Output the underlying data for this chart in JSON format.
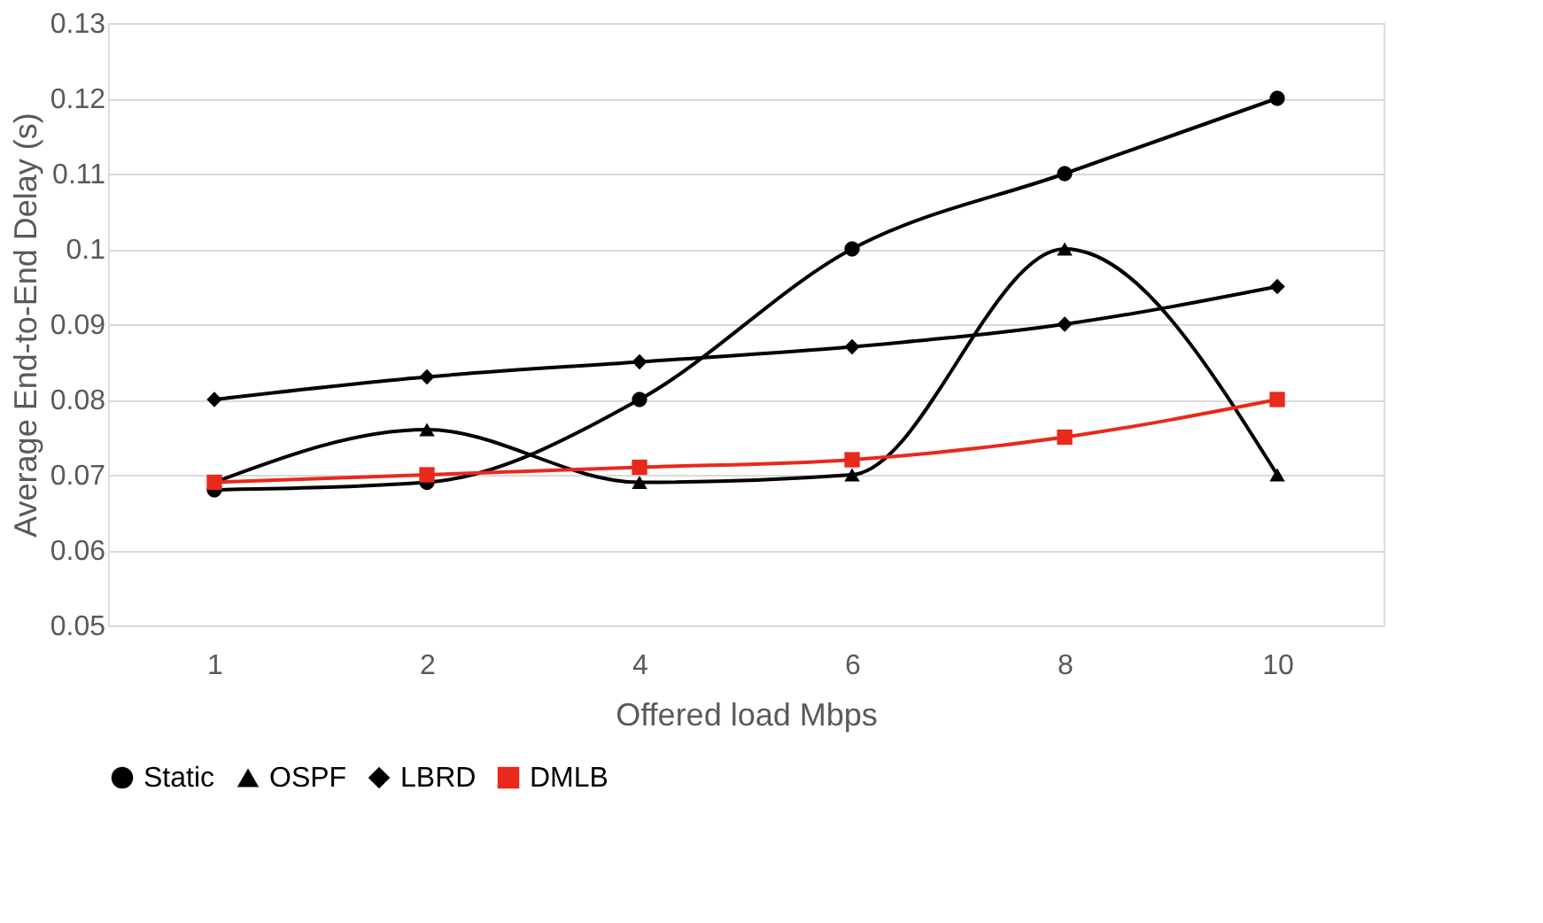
{
  "chart_data": {
    "type": "line",
    "xlabel": "Offered load Mbps",
    "ylabel": "Average End-to-End Delay (s)",
    "categories": [
      "1",
      "2",
      "4",
      "6",
      "8",
      "10"
    ],
    "series": [
      {
        "name": "Static",
        "color": "#000000",
        "marker": "circle",
        "values": [
          0.068,
          0.069,
          0.08,
          0.1,
          0.11,
          0.12
        ]
      },
      {
        "name": "OSPF",
        "color": "#000000",
        "marker": "triangle",
        "values": [
          0.069,
          0.076,
          0.069,
          0.07,
          0.1,
          0.07
        ]
      },
      {
        "name": "LBRD",
        "color": "#000000",
        "marker": "diamond",
        "values": [
          0.08,
          0.083,
          0.085,
          0.087,
          0.09,
          0.095
        ]
      },
      {
        "name": "DMLB",
        "color": "#e8291c",
        "marker": "square",
        "values": [
          0.069,
          0.07,
          0.071,
          0.072,
          0.075,
          0.08
        ]
      }
    ],
    "ylim": [
      0.05,
      0.13
    ],
    "yticks": [
      0.05,
      0.06,
      0.07,
      0.08,
      0.09,
      0.1,
      0.11,
      0.12,
      0.13
    ],
    "grid": "y",
    "legend": "bottom",
    "line_style": "solid"
  }
}
